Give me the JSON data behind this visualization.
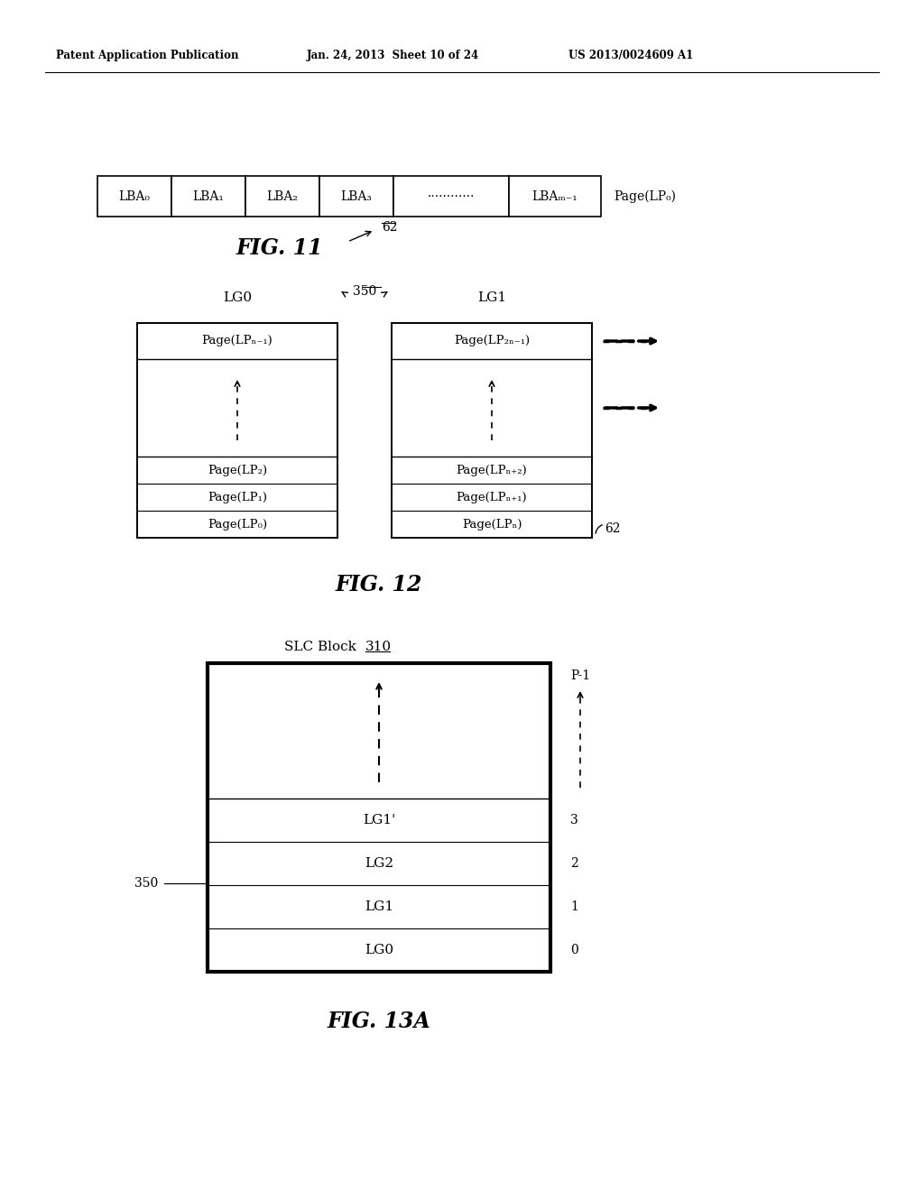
{
  "header_left": "Patent Application Publication",
  "header_mid": "Jan. 24, 2013  Sheet 10 of 24",
  "header_right": "US 2013/0024609 A1",
  "bg_color": "#ffffff",
  "fig11": {
    "cells": [
      "LBA₀",
      "LBA₁",
      "LBA₂",
      "LBA₃",
      "············",
      "LBAₘ₋₁"
    ],
    "label": "Page(LP₀)",
    "ref": "62",
    "caption": "FIG. 11"
  },
  "fig12": {
    "caption": "FIG. 12",
    "ref_arrow": "350",
    "ref62": "62",
    "lg0_label": "LG0",
    "lg1_label": "LG1",
    "lg0_rows_top": "Page(LPₙ₋₁)",
    "lg0_rows_bot": [
      "Page(LP₂)",
      "Page(LP₁)",
      "Page(LP₀)"
    ],
    "lg1_rows_top": "Page(LP₂ₙ₋₁)",
    "lg1_rows_bot": [
      "Page(LPₙ₊₂)",
      "Page(LPₙ₊₁)",
      "Page(LPₙ)"
    ]
  },
  "fig13a": {
    "caption": "FIG. 13A",
    "title": "SLC Block ",
    "title_ref": "310",
    "ref350": "350",
    "rows": [
      {
        "label": "LG0",
        "num": "0"
      },
      {
        "label": "LG1",
        "num": "1"
      },
      {
        "label": "LG2",
        "num": "2"
      },
      {
        "label": "LG1'",
        "num": "3"
      }
    ],
    "top_label": "P-1"
  }
}
